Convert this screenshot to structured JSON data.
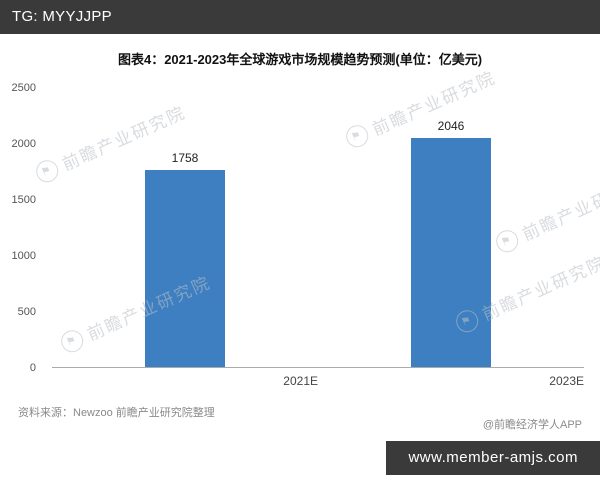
{
  "header": {
    "tag_label": "TG: MYYJJPP"
  },
  "chart_data": {
    "type": "bar",
    "title": "图表4：2021-2023年全球游戏市场规模趋势预测(单位：亿美元)",
    "categories": [
      "2021E",
      "2023E"
    ],
    "values": [
      1758,
      2046
    ],
    "ylim": [
      0,
      2500
    ],
    "yticks": [
      0,
      500,
      1000,
      1500,
      2000,
      2500
    ],
    "bar_color": "#3E7FC1",
    "grid": false,
    "legend": false,
    "xlabel": "",
    "ylabel": ""
  },
  "watermark": {
    "text": "前瞻产业研究院",
    "logo_icon": "circle-flag-logo",
    "logo_glyph": "⚑"
  },
  "footer": {
    "source_label": "资料来源：",
    "source_value": "Newzoo 前瞻产业研究院整理",
    "credit": "@前瞻经济学人APP",
    "url": "www.member-amjs.com"
  }
}
